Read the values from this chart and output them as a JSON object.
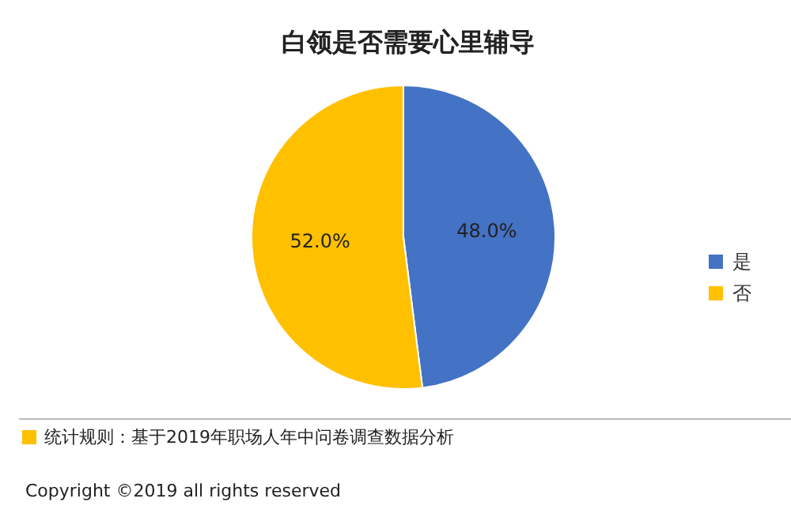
{
  "chart_data": {
    "type": "pie",
    "title": "白领是否需要心里辅导",
    "categories": [
      "是",
      "否"
    ],
    "values": [
      48.0,
      52.0
    ],
    "colors": [
      "#4472c4",
      "#ffc000"
    ],
    "value_labels": [
      "48.0%",
      "52.0%"
    ],
    "legend": "right",
    "annotations": [
      "统计规则：基于2019年职场人年中问卷调查数据分析",
      "Copyright ©2019 all rights reserved"
    ]
  }
}
